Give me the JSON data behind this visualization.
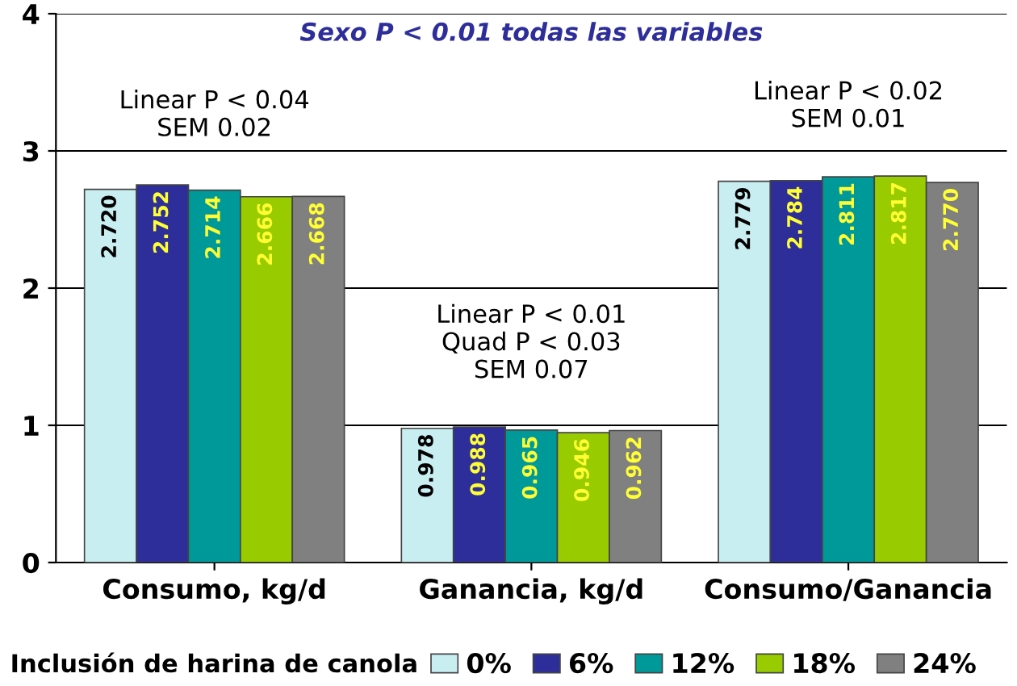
{
  "chart_data": {
    "type": "bar",
    "categories": [
      "Consumo, kg/d",
      "Ganancia, kg/d",
      "Consumo/Ganancia"
    ],
    "series": [
      {
        "name": "0%",
        "color": "#c8eef2",
        "values": [
          2.72,
          0.978,
          2.779
        ],
        "value_labels": [
          "2.720",
          "0.978",
          "2.779"
        ]
      },
      {
        "name": "6%",
        "color": "#2e2e9a",
        "values": [
          2.752,
          0.988,
          2.784
        ],
        "value_labels": [
          "2.752",
          "0.988",
          "2.784"
        ]
      },
      {
        "name": "12%",
        "color": "#009999",
        "values": [
          2.714,
          0.965,
          2.811
        ],
        "value_labels": [
          "2.714",
          "0.965",
          "2.811"
        ]
      },
      {
        "name": "18%",
        "color": "#99cc00",
        "values": [
          2.666,
          0.946,
          2.817
        ],
        "value_labels": [
          "2.666",
          "0.946",
          "2.817"
        ]
      },
      {
        "name": "24%",
        "color": "#808080",
        "values": [
          2.668,
          0.962,
          2.77
        ],
        "value_labels": [
          "2.668",
          "0.962",
          "2.770"
        ]
      }
    ],
    "ylim": [
      0,
      4
    ],
    "yticks": [
      0,
      1,
      2,
      3,
      4
    ],
    "grid": "y",
    "legend": "bottom",
    "legend_title": "Inclusión de harina de canola",
    "annotations": [
      "Sexo P < 0.01 todas las variables",
      "Linear P < 0.04\nSEM 0.02",
      "Linear P < 0.01\nQuad P < 0.03\nSEM 0.07",
      "Linear P < 0.02\nSEM 0.01"
    ]
  }
}
